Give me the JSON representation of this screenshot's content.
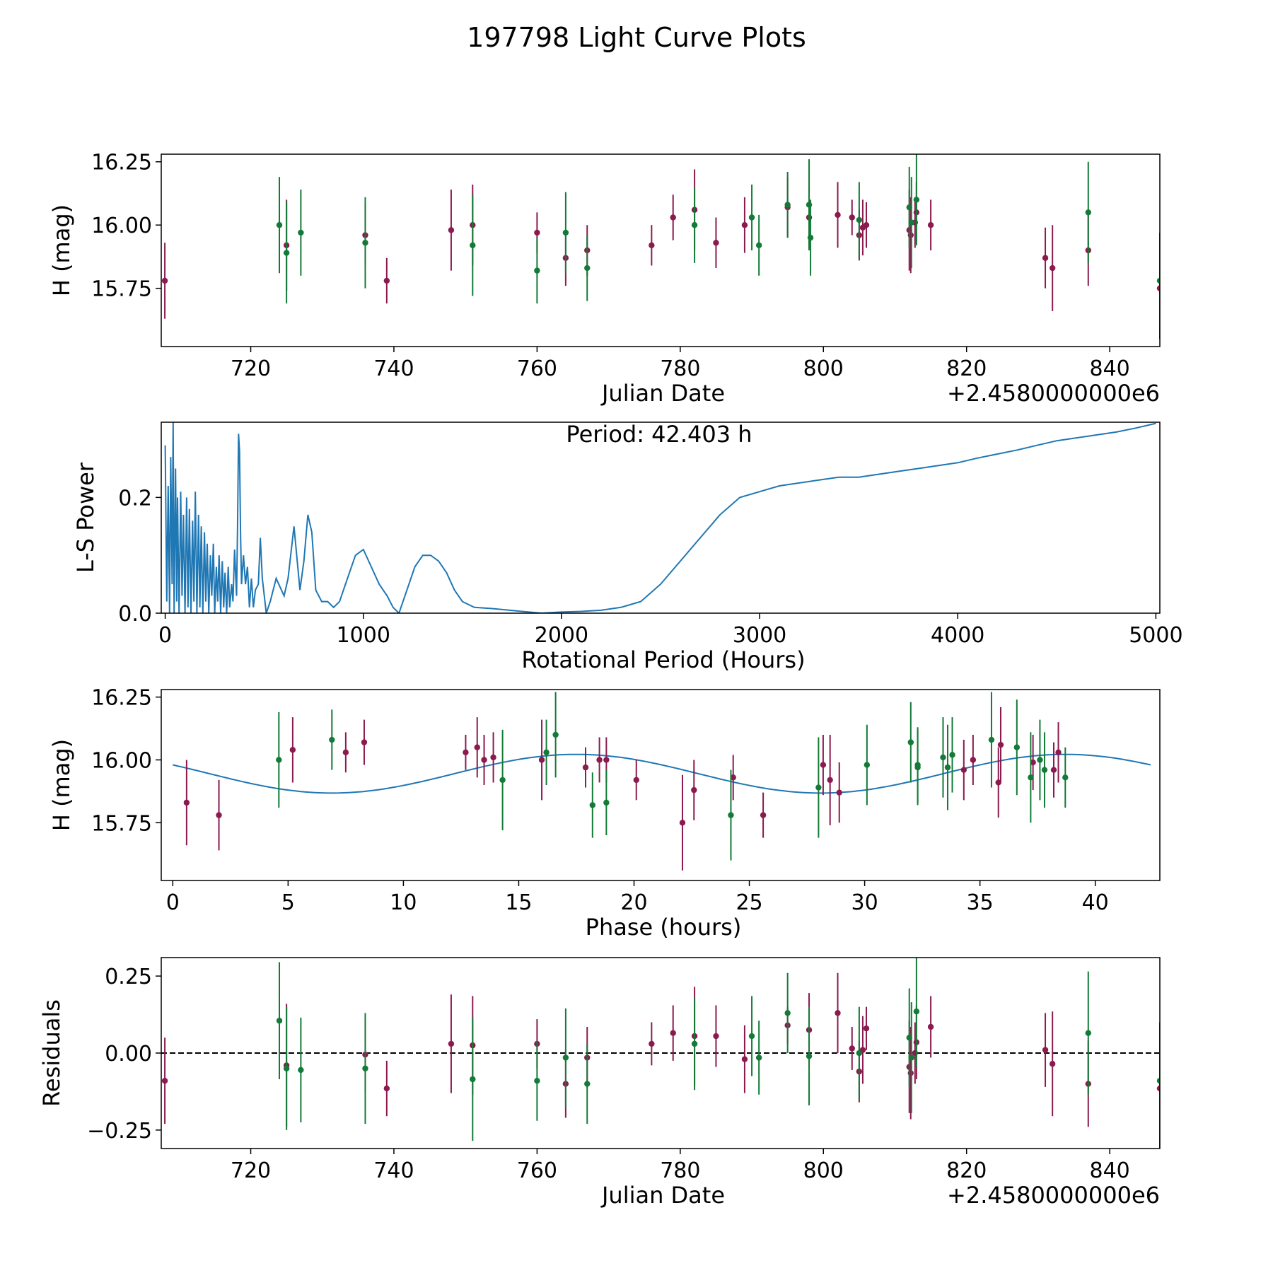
{
  "title": "197798 Light Curve Plots",
  "colors": {
    "magenta": "#8b1a4f",
    "green": "#137a37",
    "curve": "#1f77b4"
  },
  "chart_data": [
    {
      "id": "lc",
      "type": "scatter",
      "xlabel": "Julian Date",
      "ylabel": "H (mag)",
      "offset_label": "+2.4580000000e6",
      "xlim": [
        707.5,
        847
      ],
      "ylim": [
        15.52,
        16.28
      ],
      "xticks": [
        720,
        740,
        760,
        780,
        800,
        820,
        840
      ],
      "xtick_labels": [
        "720",
        "740",
        "760",
        "780",
        "800",
        "820",
        "840"
      ],
      "yticks": [
        15.75,
        16.0,
        16.25
      ],
      "ytick_labels": [
        "15.75",
        "16.00",
        "16.25"
      ],
      "series": [
        {
          "name": "magenta",
          "x": [
            708,
            725,
            736,
            739,
            748,
            751,
            760,
            764,
            767,
            776,
            779,
            782,
            785,
            789,
            795,
            798,
            802,
            804,
            805,
            805.5,
            806,
            812,
            812.2,
            812.8,
            813,
            815,
            831,
            832,
            837,
            847
          ],
          "y": [
            15.78,
            15.92,
            15.96,
            15.78,
            15.98,
            16.0,
            15.97,
            15.87,
            15.9,
            15.92,
            16.03,
            16.06,
            15.93,
            16.0,
            16.07,
            16.03,
            16.04,
            16.03,
            15.96,
            15.99,
            16.0,
            15.98,
            15.96,
            16.01,
            16.05,
            16.0,
            15.87,
            15.83,
            15.9,
            15.75
          ],
          "err": [
            0.15,
            0.18,
            0.12,
            0.09,
            0.16,
            0.16,
            0.08,
            0.11,
            0.1,
            0.08,
            0.09,
            0.16,
            0.1,
            0.11,
            0.12,
            0.12,
            0.13,
            0.07,
            0.1,
            0.11,
            0.09,
            0.16,
            0.15,
            0.1,
            0.12,
            0.1,
            0.12,
            0.17,
            0.14,
            0.2
          ]
        },
        {
          "name": "green",
          "x": [
            724,
            725,
            727,
            736,
            751,
            760,
            764,
            767,
            782,
            790,
            791,
            795,
            798,
            798.2,
            805,
            812,
            812.3,
            813,
            837,
            847
          ],
          "y": [
            16.0,
            15.89,
            15.97,
            15.93,
            15.92,
            15.82,
            15.97,
            15.83,
            16.0,
            16.03,
            15.92,
            16.08,
            16.08,
            15.95,
            16.02,
            16.07,
            16.01,
            16.1,
            16.05,
            15.78
          ],
          "err": [
            0.19,
            0.2,
            0.17,
            0.18,
            0.2,
            0.13,
            0.16,
            0.13,
            0.15,
            0.13,
            0.12,
            0.13,
            0.18,
            0.15,
            0.15,
            0.16,
            0.18,
            0.18,
            0.2,
            0.19
          ]
        }
      ]
    },
    {
      "id": "ls",
      "type": "line",
      "xlabel": "Rotational Period (Hours)",
      "ylabel": "L-S Power",
      "annotation": "Period: 42.403 h",
      "xlim": [
        -20,
        5020
      ],
      "ylim": [
        0,
        0.33
      ],
      "xticks": [
        0,
        1000,
        2000,
        3000,
        4000,
        5000
      ],
      "xtick_labels": [
        "0",
        "1000",
        "2000",
        "3000",
        "4000",
        "5000"
      ],
      "yticks": [
        0.0,
        0.2
      ],
      "ytick_labels": [
        "0.0",
        "0.2"
      ],
      "x": [
        0,
        8,
        15,
        22,
        28,
        35,
        40,
        45,
        52,
        58,
        62,
        70,
        78,
        85,
        92,
        100,
        108,
        115,
        122,
        130,
        138,
        145,
        152,
        160,
        168,
        175,
        182,
        190,
        198,
        205,
        212,
        220,
        228,
        235,
        243,
        250,
        258,
        265,
        272,
        280,
        288,
        295,
        302,
        310,
        318,
        325,
        335,
        342,
        350,
        360,
        365,
        370,
        375,
        380,
        385,
        395,
        405,
        415,
        425,
        435,
        445,
        455,
        470,
        480,
        490,
        510,
        530,
        560,
        600,
        620,
        650,
        680,
        700,
        720,
        740,
        760,
        790,
        820,
        850,
        880,
        920,
        960,
        1000,
        1040,
        1080,
        1120,
        1150,
        1180,
        1200,
        1230,
        1260,
        1300,
        1340,
        1380,
        1420,
        1460,
        1500,
        1560,
        1650,
        1800,
        1900,
        2000,
        2100,
        2200,
        2300,
        2400,
        2500,
        2600,
        2700,
        2800,
        2900,
        3000,
        3100,
        3200,
        3300,
        3400,
        3500,
        3600,
        3700,
        3800,
        3900,
        4000,
        4100,
        4200,
        4300,
        4400,
        4500,
        4600,
        4700,
        4800,
        4900,
        5000
      ],
      "y": [
        0.29,
        0.02,
        0.22,
        0.0,
        0.27,
        0.05,
        0.33,
        0.0,
        0.25,
        0.02,
        0.2,
        0.0,
        0.21,
        0.03,
        0.17,
        0.0,
        0.2,
        0.01,
        0.18,
        0.0,
        0.16,
        0.02,
        0.21,
        0.0,
        0.17,
        0.01,
        0.15,
        0.0,
        0.14,
        0.02,
        0.12,
        0.0,
        0.1,
        0.03,
        0.12,
        0.0,
        0.08,
        0.02,
        0.1,
        0.0,
        0.09,
        0.01,
        0.07,
        0.0,
        0.08,
        0.01,
        0.05,
        0.02,
        0.11,
        0.03,
        0.15,
        0.31,
        0.28,
        0.14,
        0.05,
        0.1,
        0.05,
        0.08,
        0.01,
        0.06,
        0.01,
        0.04,
        0.05,
        0.13,
        0.06,
        0.0,
        0.02,
        0.06,
        0.03,
        0.06,
        0.15,
        0.04,
        0.09,
        0.17,
        0.14,
        0.04,
        0.02,
        0.02,
        0.01,
        0.02,
        0.06,
        0.1,
        0.11,
        0.08,
        0.05,
        0.03,
        0.01,
        0.0,
        0.02,
        0.05,
        0.08,
        0.1,
        0.1,
        0.09,
        0.07,
        0.04,
        0.02,
        0.01,
        0.008,
        0.003,
        0.0,
        0.002,
        0.003,
        0.005,
        0.01,
        0.02,
        0.05,
        0.09,
        0.13,
        0.17,
        0.2,
        0.21,
        0.22,
        0.225,
        0.23,
        0.235,
        0.235,
        0.24,
        0.245,
        0.25,
        0.255,
        0.26,
        0.268,
        0.275,
        0.282,
        0.29,
        0.298,
        0.303,
        0.308,
        0.313,
        0.32,
        0.328
      ]
    },
    {
      "id": "ph",
      "type": "scatter",
      "xlabel": "Phase (hours)",
      "ylabel": "H (mag)",
      "xlim": [
        -0.5,
        42.8
      ],
      "ylim": [
        15.52,
        16.28
      ],
      "xticks": [
        0,
        5,
        10,
        15,
        20,
        25,
        30,
        35,
        40
      ],
      "xtick_labels": [
        "0",
        "5",
        "10",
        "15",
        "20",
        "25",
        "30",
        "35",
        "40"
      ],
      "yticks": [
        15.75,
        16.0,
        16.25
      ],
      "ytick_labels": [
        "15.75",
        "16.00",
        "16.25"
      ],
      "model": {
        "mean": 15.945,
        "amp": 0.077,
        "period": 21.2,
        "phase0": 6.9,
        "xmin": 0,
        "xmax": 42.4
      },
      "series": [
        {
          "name": "magenta",
          "x": [
            0.6,
            2.0,
            5.2,
            7.5,
            8.3,
            12.7,
            13.2,
            13.5,
            13.9,
            16.0,
            17.9,
            18.5,
            18.8,
            20.1,
            22.1,
            22.6,
            24.3,
            25.6,
            28.2,
            28.5,
            28.9,
            34.3,
            34.7,
            35.8,
            35.9,
            37.3,
            38.2,
            38.4
          ],
          "y": [
            15.83,
            15.78,
            16.04,
            16.03,
            16.07,
            16.03,
            16.05,
            16.0,
            16.01,
            16.0,
            15.97,
            16.0,
            16.0,
            15.92,
            15.75,
            15.88,
            15.93,
            15.78,
            15.98,
            15.92,
            15.87,
            15.96,
            16.0,
            15.91,
            16.06,
            15.99,
            15.96,
            16.03
          ],
          "err": [
            0.17,
            0.14,
            0.13,
            0.08,
            0.09,
            0.07,
            0.12,
            0.1,
            0.1,
            0.16,
            0.08,
            0.09,
            0.09,
            0.08,
            0.19,
            0.12,
            0.09,
            0.09,
            0.12,
            0.18,
            0.12,
            0.12,
            0.1,
            0.14,
            0.15,
            0.11,
            0.11,
            0.12
          ]
        },
        {
          "name": "green",
          "x": [
            4.6,
            6.9,
            14.3,
            16.2,
            16.6,
            18.2,
            18.8,
            24.2,
            28.0,
            30.1,
            32.0,
            32.3,
            32.3,
            33.4,
            33.6,
            33.8,
            35.5,
            36.6,
            37.2,
            37.6,
            37.8,
            38.7
          ],
          "y": [
            16.0,
            16.08,
            15.92,
            16.03,
            16.1,
            15.82,
            15.83,
            15.78,
            15.89,
            15.98,
            16.07,
            15.97,
            15.98,
            16.01,
            15.97,
            16.02,
            16.08,
            16.05,
            15.93,
            16.0,
            15.96,
            15.93
          ],
          "err": [
            0.19,
            0.12,
            0.2,
            0.13,
            0.17,
            0.13,
            0.13,
            0.18,
            0.2,
            0.16,
            0.16,
            0.15,
            0.15,
            0.16,
            0.17,
            0.15,
            0.19,
            0.19,
            0.18,
            0.16,
            0.15,
            0.12
          ]
        }
      ]
    },
    {
      "id": "res",
      "type": "scatter",
      "xlabel": "Julian Date",
      "ylabel": "Residuals",
      "offset_label": "+2.4580000000e6",
      "xlim": [
        707.5,
        847
      ],
      "ylim": [
        -0.31,
        0.31
      ],
      "xticks": [
        720,
        740,
        760,
        780,
        800,
        820,
        840
      ],
      "xtick_labels": [
        "720",
        "740",
        "760",
        "780",
        "800",
        "820",
        "840"
      ],
      "yticks": [
        -0.25,
        0.0,
        0.25
      ],
      "ytick_labels": [
        "−0.25",
        "0.00",
        "0.25"
      ],
      "zero_line": 0,
      "series": [
        {
          "name": "magenta",
          "x": [
            708,
            725,
            736,
            739,
            748,
            751,
            760,
            764,
            767,
            776,
            779,
            782,
            785,
            789,
            795,
            798,
            802,
            804,
            805,
            805.5,
            806,
            812,
            812.2,
            812.8,
            813,
            815,
            831,
            832,
            837,
            847
          ],
          "y": [
            -0.09,
            -0.04,
            -0.005,
            -0.115,
            0.03,
            0.025,
            0.03,
            -0.1,
            -0.015,
            0.03,
            0.065,
            0.055,
            0.055,
            -0.02,
            0.09,
            0.075,
            0.13,
            0.015,
            -0.06,
            0.01,
            0.08,
            -0.045,
            -0.065,
            0.0,
            0.035,
            0.085,
            0.01,
            -0.035,
            -0.1,
            -0.115
          ],
          "err": [
            0.14,
            0.2,
            0.12,
            0.09,
            0.16,
            0.16,
            0.08,
            0.11,
            0.1,
            0.07,
            0.09,
            0.16,
            0.1,
            0.11,
            0.06,
            0.12,
            0.13,
            0.07,
            0.1,
            0.11,
            0.07,
            0.15,
            0.15,
            0.1,
            0.12,
            0.1,
            0.12,
            0.17,
            0.14,
            0.2
          ]
        },
        {
          "name": "green",
          "x": [
            724,
            725,
            727,
            736,
            751,
            760,
            764,
            767,
            782,
            790,
            791,
            795,
            798,
            805,
            812,
            812.3,
            813
          ],
          "y": [
            0.105,
            -0.05,
            -0.055,
            -0.05,
            -0.085,
            -0.09,
            -0.015,
            -0.1,
            0.03,
            0.055,
            -0.015,
            0.13,
            -0.01,
            0.0,
            0.05,
            -0.015,
            0.135
          ],
          "err": [
            0.19,
            0.2,
            0.17,
            0.18,
            0.2,
            0.13,
            0.16,
            0.13,
            0.15,
            0.13,
            0.12,
            0.13,
            0.16,
            0.15,
            0.16,
            0.18,
            0.18
          ]
        },
        {
          "name": "green-end",
          "x": [
            837,
            847
          ],
          "y": [
            0.065,
            -0.09
          ],
          "err": [
            0.2,
            0.19
          ]
        }
      ]
    }
  ]
}
